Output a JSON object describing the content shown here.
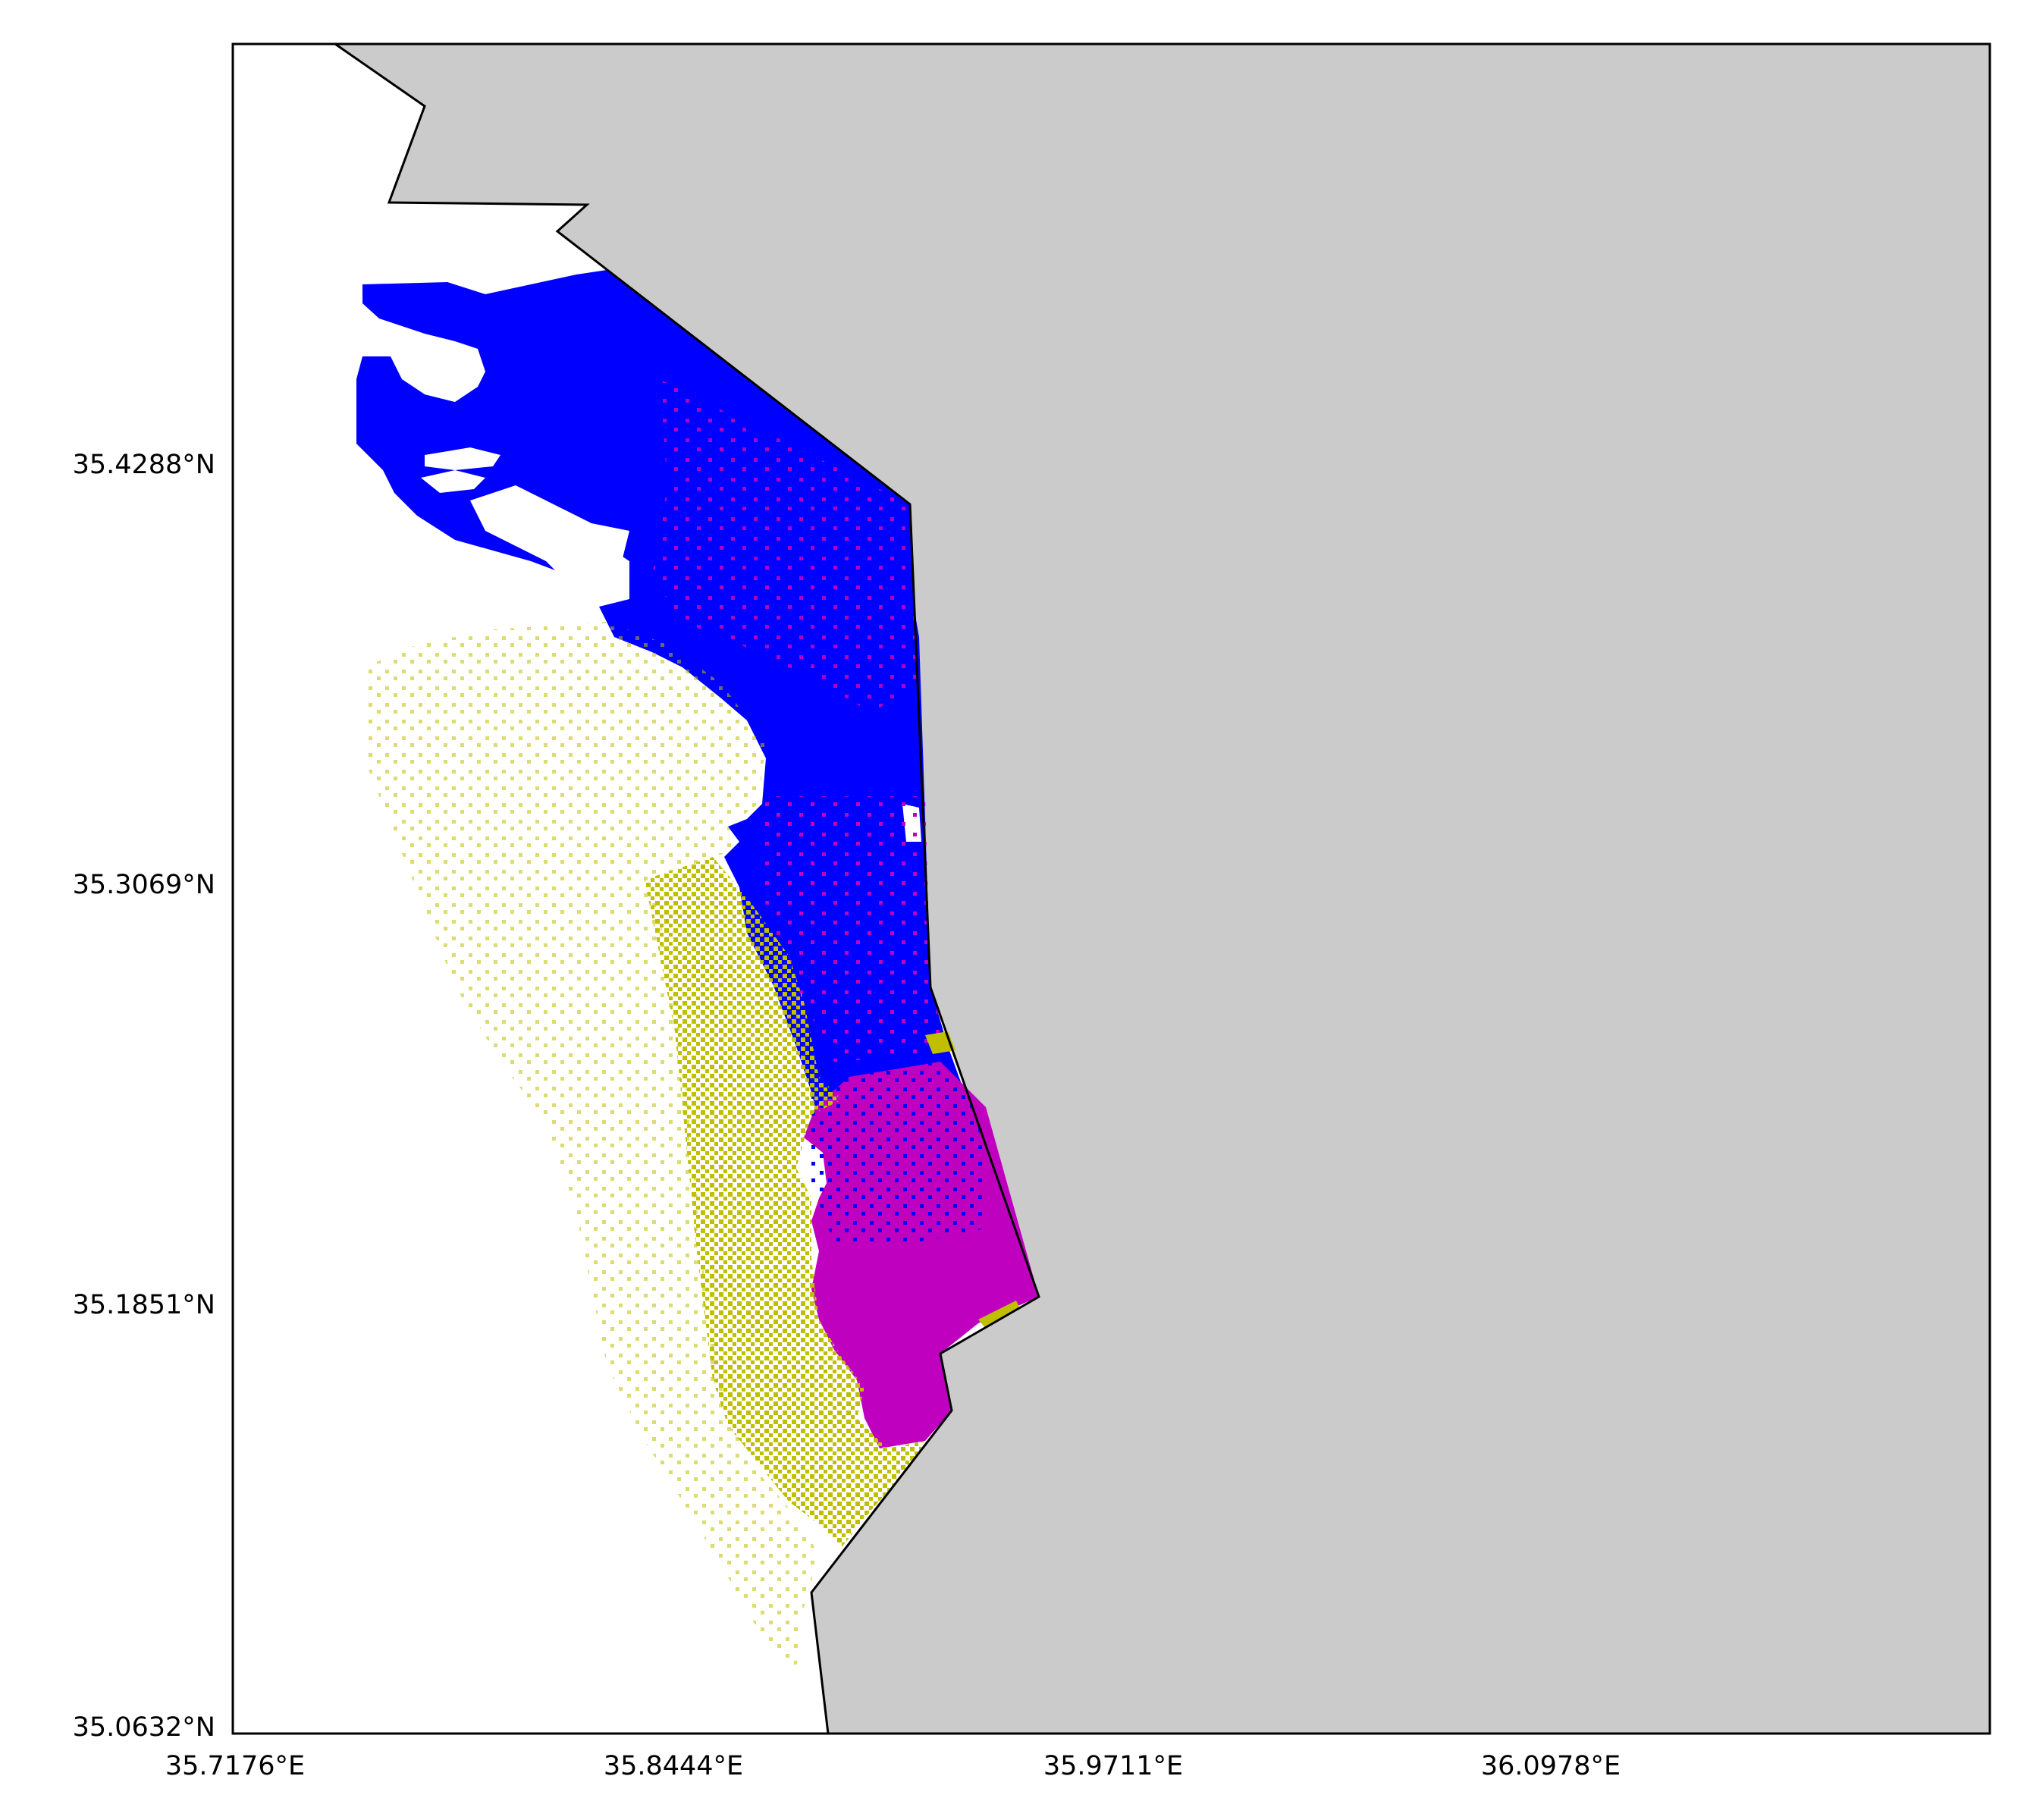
{
  "map": {
    "land_color": "#cbcbcb",
    "sea_color": "#ffffff",
    "coast_color": "#000000",
    "categories": [
      {
        "color_name": "blue",
        "color": "#0000ff"
      },
      {
        "color_name": "magenta",
        "color": "#bf00bf"
      },
      {
        "color_name": "olive-yellow",
        "color": "#bfbf00"
      }
    ]
  },
  "axes": {
    "x_ticks": [
      "35.7176°E",
      "35.8444°E",
      "35.9711°E",
      "36.0978°E"
    ],
    "y_ticks": [
      "35.4288°N",
      "35.3069°N",
      "35.1851°N",
      "35.0632°N"
    ]
  }
}
